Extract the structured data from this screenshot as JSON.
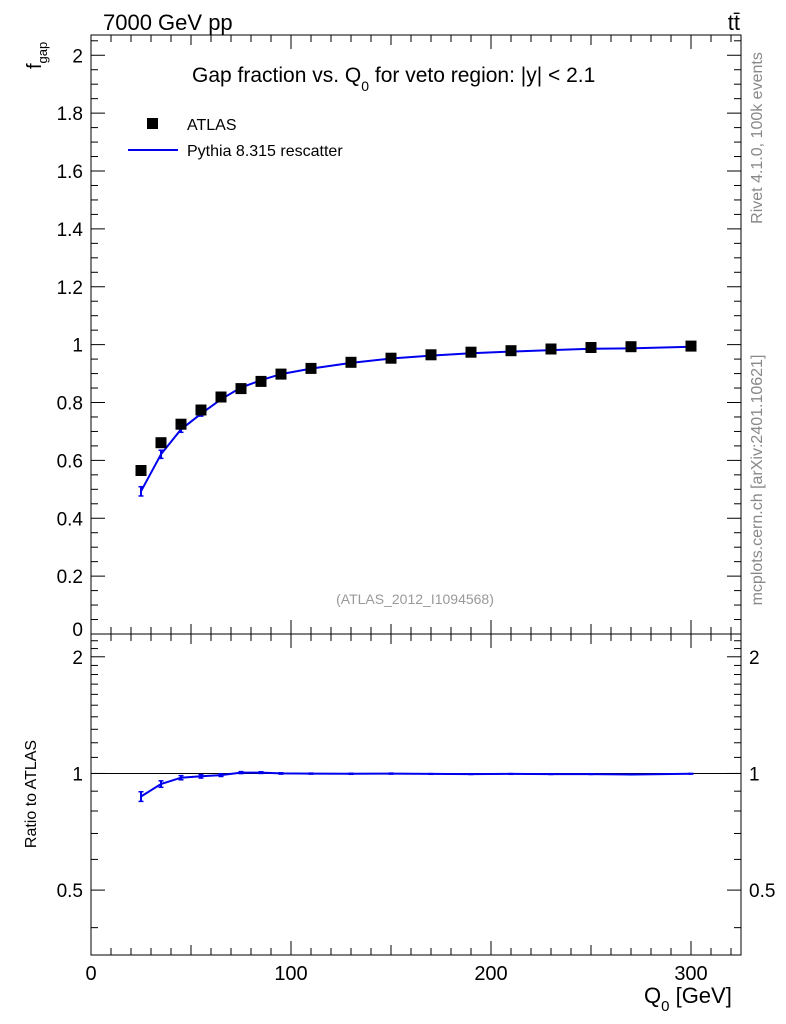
{
  "header": {
    "energy_label": "7000 GeV pp",
    "process_label": "tt̄"
  },
  "side_labels": {
    "rivet": "Rivet 4.1.0,  100k events",
    "mcplots": "mcplots.cern.ch [arXiv:2401.10621]"
  },
  "chart_data": {
    "type": "scatter",
    "title_parts": {
      "prefix": "Gap fraction vs. Q",
      "subscript": "0",
      "suffix": " for veto region: |y| < 2.1"
    },
    "analysis_tag": "(ATLAS_2012_I1094568)",
    "xlabel": {
      "main": "Q",
      "sub": "0",
      "unit": " [GeV]"
    },
    "ylabel": {
      "main": "f",
      "sub": "gap"
    },
    "ratio_ylabel": "Ratio to ATLAS",
    "xlim": [
      0,
      325
    ],
    "ylim": [
      0,
      2.07
    ],
    "ratio_ylim": [
      0.34,
      2.29
    ],
    "x_ticks": [
      0,
      100,
      200,
      300
    ],
    "y_ticks": [
      0,
      0.2,
      0.4,
      0.6,
      0.8,
      1,
      1.2,
      1.4,
      1.6,
      1.8,
      2
    ],
    "y_tick_labels": [
      "0",
      "0.2",
      "0.4",
      "0.6",
      "0.8",
      "1",
      "1.2",
      "1.4",
      "1.6",
      "1.8",
      "2"
    ],
    "ratio_ticks": [
      0.5,
      1,
      2
    ],
    "ratio_tick_labels": [
      "0.5",
      "1",
      "2"
    ],
    "legend": [
      {
        "name": "ATLAS",
        "marker": "square",
        "color": "#000000"
      },
      {
        "name": "Pythia 8.315 rescatter",
        "marker": "line",
        "color": "#0000ee"
      }
    ],
    "x": [
      25,
      35,
      45,
      55,
      65,
      75,
      85,
      95,
      110,
      130,
      150,
      170,
      190,
      210,
      230,
      250,
      270,
      300
    ],
    "series": [
      {
        "name": "ATLAS",
        "color": "#000000",
        "values": [
          0.565,
          0.661,
          0.725,
          0.774,
          0.819,
          0.848,
          0.873,
          0.898,
          0.918,
          0.939,
          0.953,
          0.965,
          0.974,
          0.979,
          0.985,
          0.99,
          0.993,
          0.995
        ]
      },
      {
        "name": "Pythia 8.315 rescatter",
        "color": "#0000ee",
        "values": [
          0.493,
          0.621,
          0.707,
          0.761,
          0.811,
          0.852,
          0.877,
          0.898,
          0.917,
          0.937,
          0.952,
          0.962,
          0.97,
          0.976,
          0.981,
          0.986,
          0.987,
          0.993
        ],
        "errors": [
          0.016,
          0.014,
          0.01,
          0.008,
          0.006,
          0.005,
          0.004,
          0.004,
          0.003,
          0.003,
          0.002,
          0.002,
          0.002,
          0.002,
          0.002,
          0.002,
          0.002,
          0.002
        ]
      }
    ],
    "ratio": {
      "reference": 1,
      "values": [
        0.872,
        0.939,
        0.975,
        0.983,
        0.99,
        1.005,
        1.005,
        1.0,
        0.999,
        0.998,
        0.999,
        0.997,
        0.996,
        0.997,
        0.996,
        0.996,
        0.994,
        0.998
      ],
      "errors": [
        0.025,
        0.018,
        0.012,
        0.01,
        0.008,
        0.006,
        0.005,
        0.004,
        0.003,
        0.003,
        0.003,
        0.002,
        0.002,
        0.002,
        0.002,
        0.002,
        0.002,
        0.002
      ]
    }
  }
}
